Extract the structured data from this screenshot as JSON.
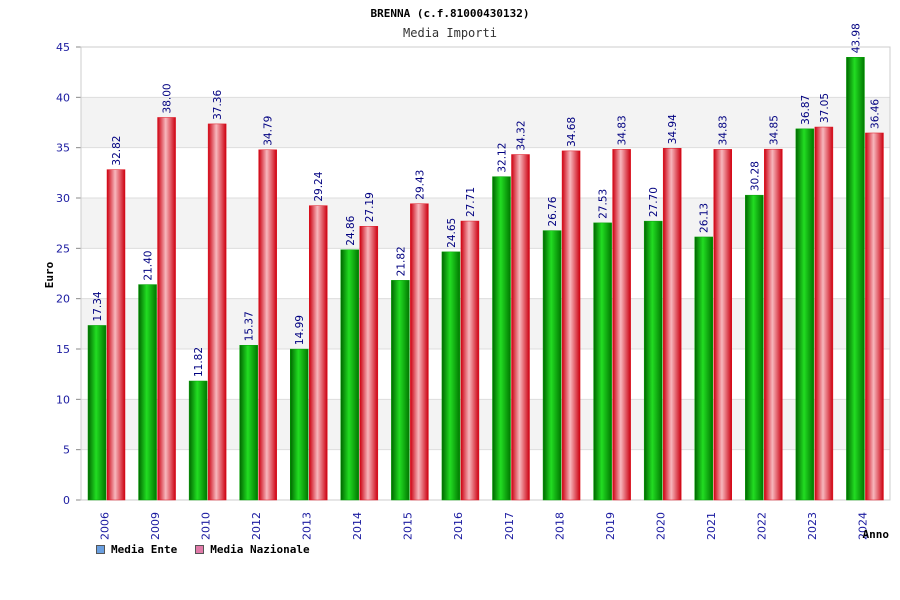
{
  "chart_data": {
    "type": "bar",
    "title": "BRENNA (c.f.81000430132)",
    "subtitle": "Media Importi",
    "xlabel": "Anno",
    "ylabel": "Euro",
    "ylim": [
      0,
      45
    ],
    "yticks": [
      0,
      5,
      10,
      15,
      20,
      25,
      30,
      35,
      40,
      45
    ],
    "grid": true,
    "categories": [
      "2006",
      "2009",
      "2010",
      "2012",
      "2013",
      "2014",
      "2015",
      "2016",
      "2017",
      "2018",
      "2019",
      "2020",
      "2021",
      "2022",
      "2023",
      "2024"
    ],
    "series": [
      {
        "name": "Media Ente",
        "color": "#00a000",
        "values": [
          17.34,
          21.4,
          11.82,
          15.37,
          14.99,
          24.86,
          21.82,
          24.65,
          32.12,
          26.76,
          27.53,
          27.7,
          26.13,
          30.28,
          36.87,
          43.98
        ],
        "labels": [
          "17.34",
          "21.40",
          "11.82",
          "15.37",
          "14.99",
          "24.86",
          "21.82",
          "24.65",
          "32.12",
          "26.76",
          "27.53",
          "27.70",
          "26.13",
          "30.28",
          "36.87",
          "43.98"
        ]
      },
      {
        "name": "Media Nazionale",
        "color": "#e0101c",
        "values": [
          32.82,
          38.0,
          37.36,
          34.79,
          29.24,
          27.19,
          29.43,
          27.71,
          34.32,
          34.68,
          34.83,
          34.94,
          34.83,
          34.85,
          37.05,
          36.46
        ],
        "labels": [
          "32.82",
          "38.00",
          "37.36",
          "34.79",
          "29.24",
          "27.19",
          "29.43",
          "27.71",
          "34.32",
          "34.68",
          "34.83",
          "34.94",
          "34.83",
          "34.85",
          "37.05",
          "36.46"
        ]
      }
    ],
    "legend": {
      "position": "bottom-left",
      "items": [
        {
          "name": "Media Ente",
          "color": "#6a9fe0"
        },
        {
          "name": "Media Nazionale",
          "color": "#e07aa8"
        }
      ]
    }
  }
}
